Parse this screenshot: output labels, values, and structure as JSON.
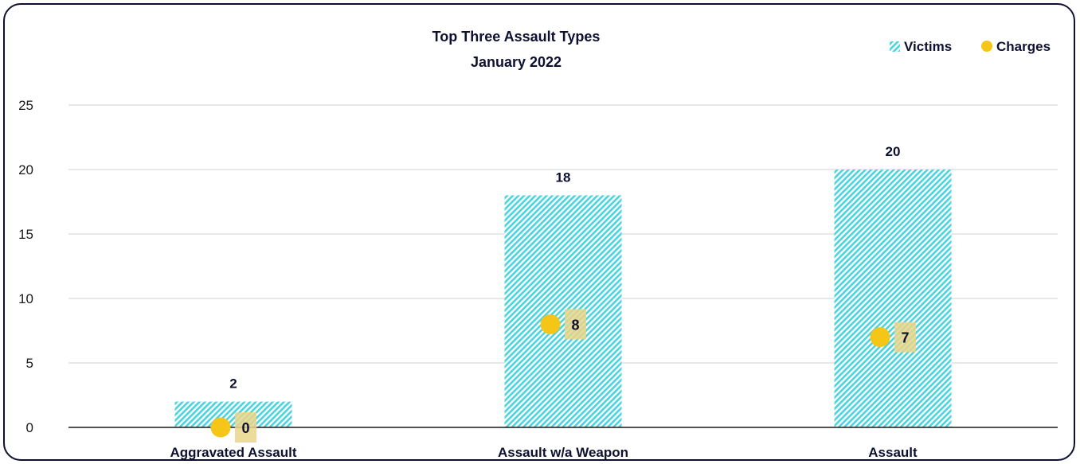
{
  "chart_data": {
    "type": "bar",
    "title": "Top Three Assault Types",
    "subtitle": "January 2022",
    "categories": [
      "Aggravated Assault",
      "Assault w/a Weapon",
      "Assault"
    ],
    "series": [
      {
        "name": "Victims",
        "type": "bar",
        "values": [
          2,
          18,
          20
        ],
        "color": "#49d4df"
      },
      {
        "name": "Charges",
        "type": "scatter",
        "values": [
          0,
          8,
          7
        ],
        "color": "#f5c518"
      }
    ],
    "ylim": [
      0,
      25
    ],
    "yticks": [
      0,
      5,
      10,
      15,
      20,
      25
    ],
    "grid": true,
    "legend_position": "top-right",
    "colors": {
      "text": "#0d1030",
      "grid": "#d9d9d9",
      "axis": "#1a1a1a",
      "label_box": "#e9d58a"
    }
  }
}
